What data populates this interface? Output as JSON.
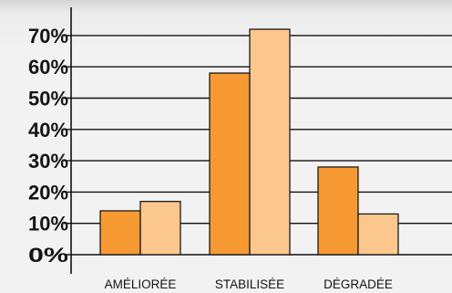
{
  "chart_data": {
    "type": "bar",
    "categories": [
      "AMÉLIORÉE",
      "STABILISÉE",
      "DÉGRADÉE"
    ],
    "series": [
      {
        "values": [
          14,
          58,
          28
        ]
      },
      {
        "values": [
          17,
          72,
          13
        ]
      }
    ],
    "y_ticks": [
      "0%",
      "10%",
      "20%",
      "30%",
      "40%",
      "50%",
      "60%",
      "70%"
    ],
    "ylim": [
      0,
      70
    ],
    "grid": true,
    "legend": "none",
    "colors": {
      "series": [
        "#f79a33",
        "#fcc78c"
      ],
      "bar_stroke": "#1a1a1a",
      "grid": "#111111",
      "axis": "#111111",
      "text": "#141414"
    }
  }
}
